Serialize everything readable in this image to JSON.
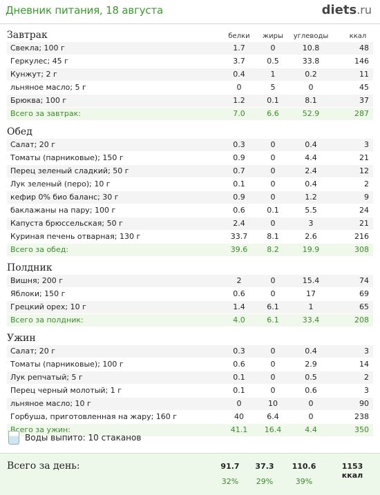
{
  "header": {
    "title": "Дневник питания, 18 августа",
    "logo": "diets",
    "logo_tld": ".ru"
  },
  "columns": {
    "protein": "белки",
    "fat": "жиры",
    "carbs": "углеводы",
    "kcal": "ккал"
  },
  "sections": [
    {
      "title": "Завтрак",
      "items": [
        {
          "name": "Свекла; 100 г",
          "p": "1.7",
          "f": "0",
          "c": "10.8",
          "k": "48"
        },
        {
          "name": "Геркулес; 45 г",
          "p": "3.7",
          "f": "0.5",
          "c": "33.8",
          "k": "146"
        },
        {
          "name": "Кунжут; 2 г",
          "p": "0.4",
          "f": "1",
          "c": "0.2",
          "k": "11"
        },
        {
          "name": "льняное масло; 5 г",
          "p": "0",
          "f": "5",
          "c": "0",
          "k": "45"
        },
        {
          "name": "Брюква; 100 г",
          "p": "1.2",
          "f": "0.1",
          "c": "8.1",
          "k": "37"
        }
      ],
      "total": {
        "name": "Всего за завтрак:",
        "p": "7.0",
        "f": "6.6",
        "c": "52.9",
        "k": "287"
      }
    },
    {
      "title": "Обед",
      "items": [
        {
          "name": "Салат; 20 г",
          "p": "0.3",
          "f": "0",
          "c": "0.4",
          "k": "3"
        },
        {
          "name": "Томаты (парниковые); 150 г",
          "p": "0.9",
          "f": "0",
          "c": "4.4",
          "k": "21"
        },
        {
          "name": "Перец зеленый сладкий; 50 г",
          "p": "0.7",
          "f": "0",
          "c": "2.4",
          "k": "12"
        },
        {
          "name": "Лук зеленый (перо); 10 г",
          "p": "0.1",
          "f": "0",
          "c": "0.4",
          "k": "2"
        },
        {
          "name": "кефир 0% био баланс; 30 г",
          "p": "0.9",
          "f": "0",
          "c": "1.2",
          "k": "9"
        },
        {
          "name": "баклажаны на пару; 100 г",
          "p": "0.6",
          "f": "0.1",
          "c": "5.5",
          "k": "24"
        },
        {
          "name": "Капуста брюссельская; 50 г",
          "p": "2.4",
          "f": "0",
          "c": "3",
          "k": "21"
        },
        {
          "name": "Куриная печень отварная; 130 г",
          "p": "33.7",
          "f": "8.1",
          "c": "2.6",
          "k": "216"
        }
      ],
      "total": {
        "name": "Всего за обед:",
        "p": "39.6",
        "f": "8.2",
        "c": "19.9",
        "k": "308"
      }
    },
    {
      "title": "Полдник",
      "items": [
        {
          "name": "Вишня; 200 г",
          "p": "2",
          "f": "0",
          "c": "15.4",
          "k": "74"
        },
        {
          "name": "Яблоки; 150 г",
          "p": "0.6",
          "f": "0",
          "c": "17",
          "k": "69"
        },
        {
          "name": "Грецкий орех; 10 г",
          "p": "1.4",
          "f": "6.1",
          "c": "1",
          "k": "65"
        }
      ],
      "total": {
        "name": "Всего за полдник:",
        "p": "4.0",
        "f": "6.1",
        "c": "33.4",
        "k": "208"
      }
    },
    {
      "title": "Ужин",
      "items": [
        {
          "name": "Салат; 20 г",
          "p": "0.3",
          "f": "0",
          "c": "0.4",
          "k": "3"
        },
        {
          "name": "Томаты (парниковые); 100 г",
          "p": "0.6",
          "f": "0",
          "c": "2.9",
          "k": "14"
        },
        {
          "name": "Лук репчатый; 5 г",
          "p": "0.1",
          "f": "0",
          "c": "0.5",
          "k": "2"
        },
        {
          "name": "Перец черный молотый; 1 г",
          "p": "0.1",
          "f": "0",
          "c": "0.6",
          "k": "3"
        },
        {
          "name": "льняное масло; 10 г",
          "p": "0",
          "f": "10",
          "c": "0",
          "k": "90"
        },
        {
          "name": "Горбуша, приготовленная на жару; 160 г",
          "p": "40",
          "f": "6.4",
          "c": "0",
          "k": "238"
        }
      ],
      "total": {
        "name": "Всего за ужин:",
        "p": "41.1",
        "f": "16.4",
        "c": "4.4",
        "k": "350"
      }
    }
  ],
  "water": {
    "icon": "water-glass-icon",
    "text": "Воды выпито: 10 стаканов"
  },
  "day": {
    "label": "Всего за день:",
    "protein": "91.7",
    "fat": "37.3",
    "carbs": "110.6",
    "kcal": "1153 ккал",
    "protein_pct": "32%",
    "fat_pct": "29%",
    "carbs_pct": "39%"
  },
  "colors": {
    "accent_green": "#3a9a2f",
    "total_row_bg": "#f0f8ec",
    "alt_row_bg": "#f4f4f4"
  }
}
